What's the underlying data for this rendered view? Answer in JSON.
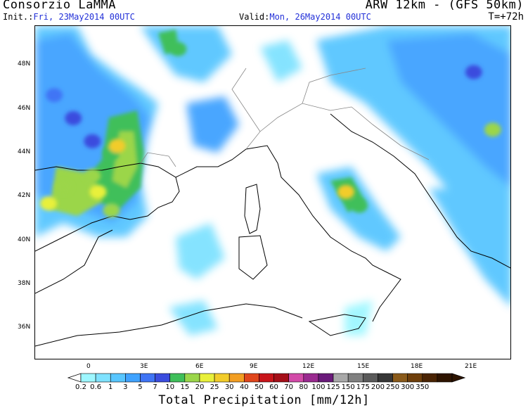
{
  "header": {
    "title_left": "Consorzio LaMMA",
    "title_right": "ARW 12km - (GFS 50km)",
    "init_label": "Init.:",
    "init_value": "Fri, 23May2014 00UTC",
    "valid_label": "Valid:",
    "valid_value": "Mon, 26May2014 00UTC",
    "lead_time": "T=+72h"
  },
  "axes": {
    "lat_labels": [
      "48N",
      "46N",
      "44N",
      "42N",
      "40N",
      "38N",
      "36N"
    ],
    "lon_labels": [
      "0",
      "3E",
      "6E",
      "9E",
      "12E",
      "15E",
      "18E",
      "21E"
    ]
  },
  "colorbar": {
    "title": "Total Precipitation [mm/12h]",
    "levels": [
      "0.2",
      "0.6",
      "1",
      "3",
      "5",
      "7",
      "10",
      "15",
      "20",
      "25",
      "30",
      "40",
      "50",
      "60",
      "70",
      "80",
      "100",
      "125",
      "150",
      "175",
      "200",
      "250",
      "300",
      "350"
    ],
    "colors": [
      "#9ef7ff",
      "#7fe2ff",
      "#58c6ff",
      "#3fa2ff",
      "#3f74f5",
      "#3a4cde",
      "#3fbf5a",
      "#9bd64a",
      "#e8f03a",
      "#f2cc2a",
      "#f29e22",
      "#e0461c",
      "#c8141a",
      "#a50e18",
      "#d24aa8",
      "#9a2a90",
      "#6a1a7a",
      "#a8a8a8",
      "#808080",
      "#5a5a5a",
      "#363636",
      "#8a5a1a",
      "#6e3e0a",
      "#4a2404",
      "#2e1400"
    ]
  },
  "map": {
    "lat_range": [
      35,
      49.5
    ],
    "lon_range": [
      -2.5,
      22.5
    ],
    "precip_cells": [
      {
        "lon": -1.5,
        "lat": 46.5,
        "level": 4
      },
      {
        "lon": -0.5,
        "lat": 45.5,
        "level": 5
      },
      {
        "lon": 0.5,
        "lat": 44.5,
        "level": 5
      },
      {
        "lon": 1.5,
        "lat": 44.0,
        "level": 6
      },
      {
        "lon": 1.8,
        "lat": 44.3,
        "level": 9
      },
      {
        "lon": 0.5,
        "lat": 43.0,
        "level": 7
      },
      {
        "lon": -1.0,
        "lat": 42.5,
        "level": 7
      },
      {
        "lon": -1.8,
        "lat": 41.8,
        "level": 8
      },
      {
        "lon": 0.8,
        "lat": 42.3,
        "level": 8
      },
      {
        "lon": 1.5,
        "lat": 41.5,
        "level": 7
      },
      {
        "lon": 5.0,
        "lat": 48.5,
        "level": 6
      },
      {
        "lon": 13.8,
        "lat": 42.3,
        "level": 9
      },
      {
        "lon": 14.5,
        "lat": 41.7,
        "level": 6
      },
      {
        "lon": 21.5,
        "lat": 45.0,
        "level": 7
      },
      {
        "lon": 20.5,
        "lat": 47.5,
        "level": 5
      }
    ]
  }
}
